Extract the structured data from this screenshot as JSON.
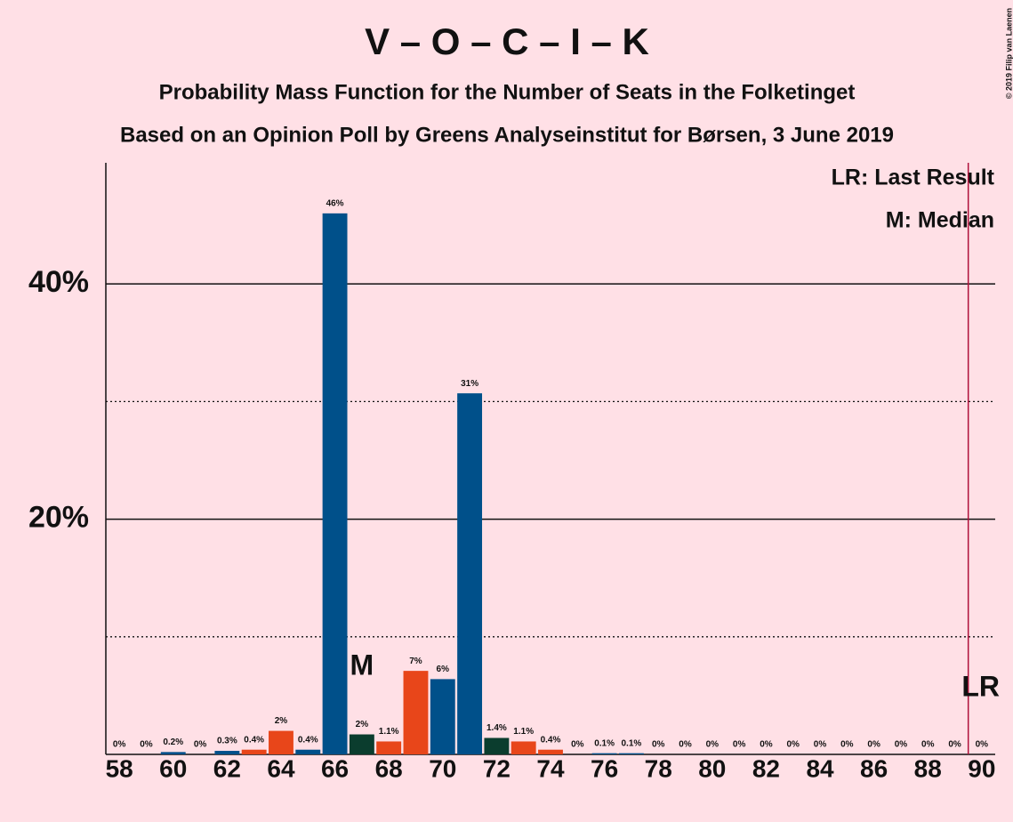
{
  "chart_data": {
    "type": "bar",
    "title": "V – O – C – I – K",
    "subtitle": "Probability Mass Function for the Number of Seats in the Folketinget",
    "subtitle2": "Based on an Opinion Poll by Greens Analyseinstitut for Børsen, 3 June 2019",
    "credit": "© 2019 Filip van Laenen",
    "legend": [
      "LR: Last Result",
      "M: Median"
    ],
    "x": [
      58,
      59,
      60,
      61,
      62,
      63,
      64,
      65,
      66,
      67,
      68,
      69,
      70,
      71,
      72,
      73,
      74,
      75,
      76,
      77,
      78,
      79,
      80,
      81,
      82,
      83,
      84,
      85,
      86,
      87,
      88,
      89,
      90
    ],
    "values": [
      0,
      0,
      0.2,
      0,
      0.3,
      0.4,
      2,
      0.4,
      46,
      1.7,
      1.1,
      7.1,
      6.4,
      30.7,
      1.4,
      1.1,
      0.4,
      0,
      0.1,
      0.1,
      0,
      0,
      0,
      0,
      0,
      0,
      0,
      0,
      0,
      0,
      0,
      0,
      0
    ],
    "value_labels": [
      "0%",
      "0%",
      "0.2%",
      "0%",
      "0.3%",
      "0.4%",
      "2%",
      "0.4%",
      "46%",
      "2%",
      "1.1%",
      "7%",
      "6%",
      "31%",
      "1.4%",
      "1.1%",
      "0.4%",
      "0%",
      "0.1%",
      "0.1%",
      "0%",
      "0%",
      "0%",
      "0%",
      "0%",
      "0%",
      "0%",
      "0%",
      "0%",
      "0%",
      "0%",
      "0%",
      "0%"
    ],
    "colors": [
      "#00508a",
      "#00508a",
      "#00508a",
      "#00508a",
      "#00508a",
      "#e8461a",
      "#e8461a",
      "#00508a",
      "#00508a",
      "#0b3d2e",
      "#e8461a",
      "#e8461a",
      "#00508a",
      "#00508a",
      "#0b3d2e",
      "#e8461a",
      "#e8461a",
      "#00508a",
      "#00508a",
      "#00508a",
      "#00508a",
      "#00508a",
      "#00508a",
      "#00508a",
      "#00508a",
      "#00508a",
      "#00508a",
      "#00508a",
      "#00508a",
      "#00508a",
      "#00508a",
      "#00508a",
      "#00508a"
    ],
    "xlim": [
      57.5,
      90.5
    ],
    "xticks": [
      58,
      60,
      62,
      64,
      66,
      68,
      70,
      72,
      74,
      76,
      78,
      80,
      82,
      84,
      86,
      88,
      90
    ],
    "ylim": [
      0,
      50.3
    ],
    "yticks": [
      {
        "value": 20,
        "label": "20%"
      },
      {
        "value": 40,
        "label": "40%"
      }
    ],
    "minor_yticks": [
      10,
      30
    ],
    "annotations": [
      {
        "text": "M",
        "x": 67
      },
      {
        "text": "LR",
        "x": 89.5
      }
    ],
    "lr_color": "#b0103a"
  }
}
